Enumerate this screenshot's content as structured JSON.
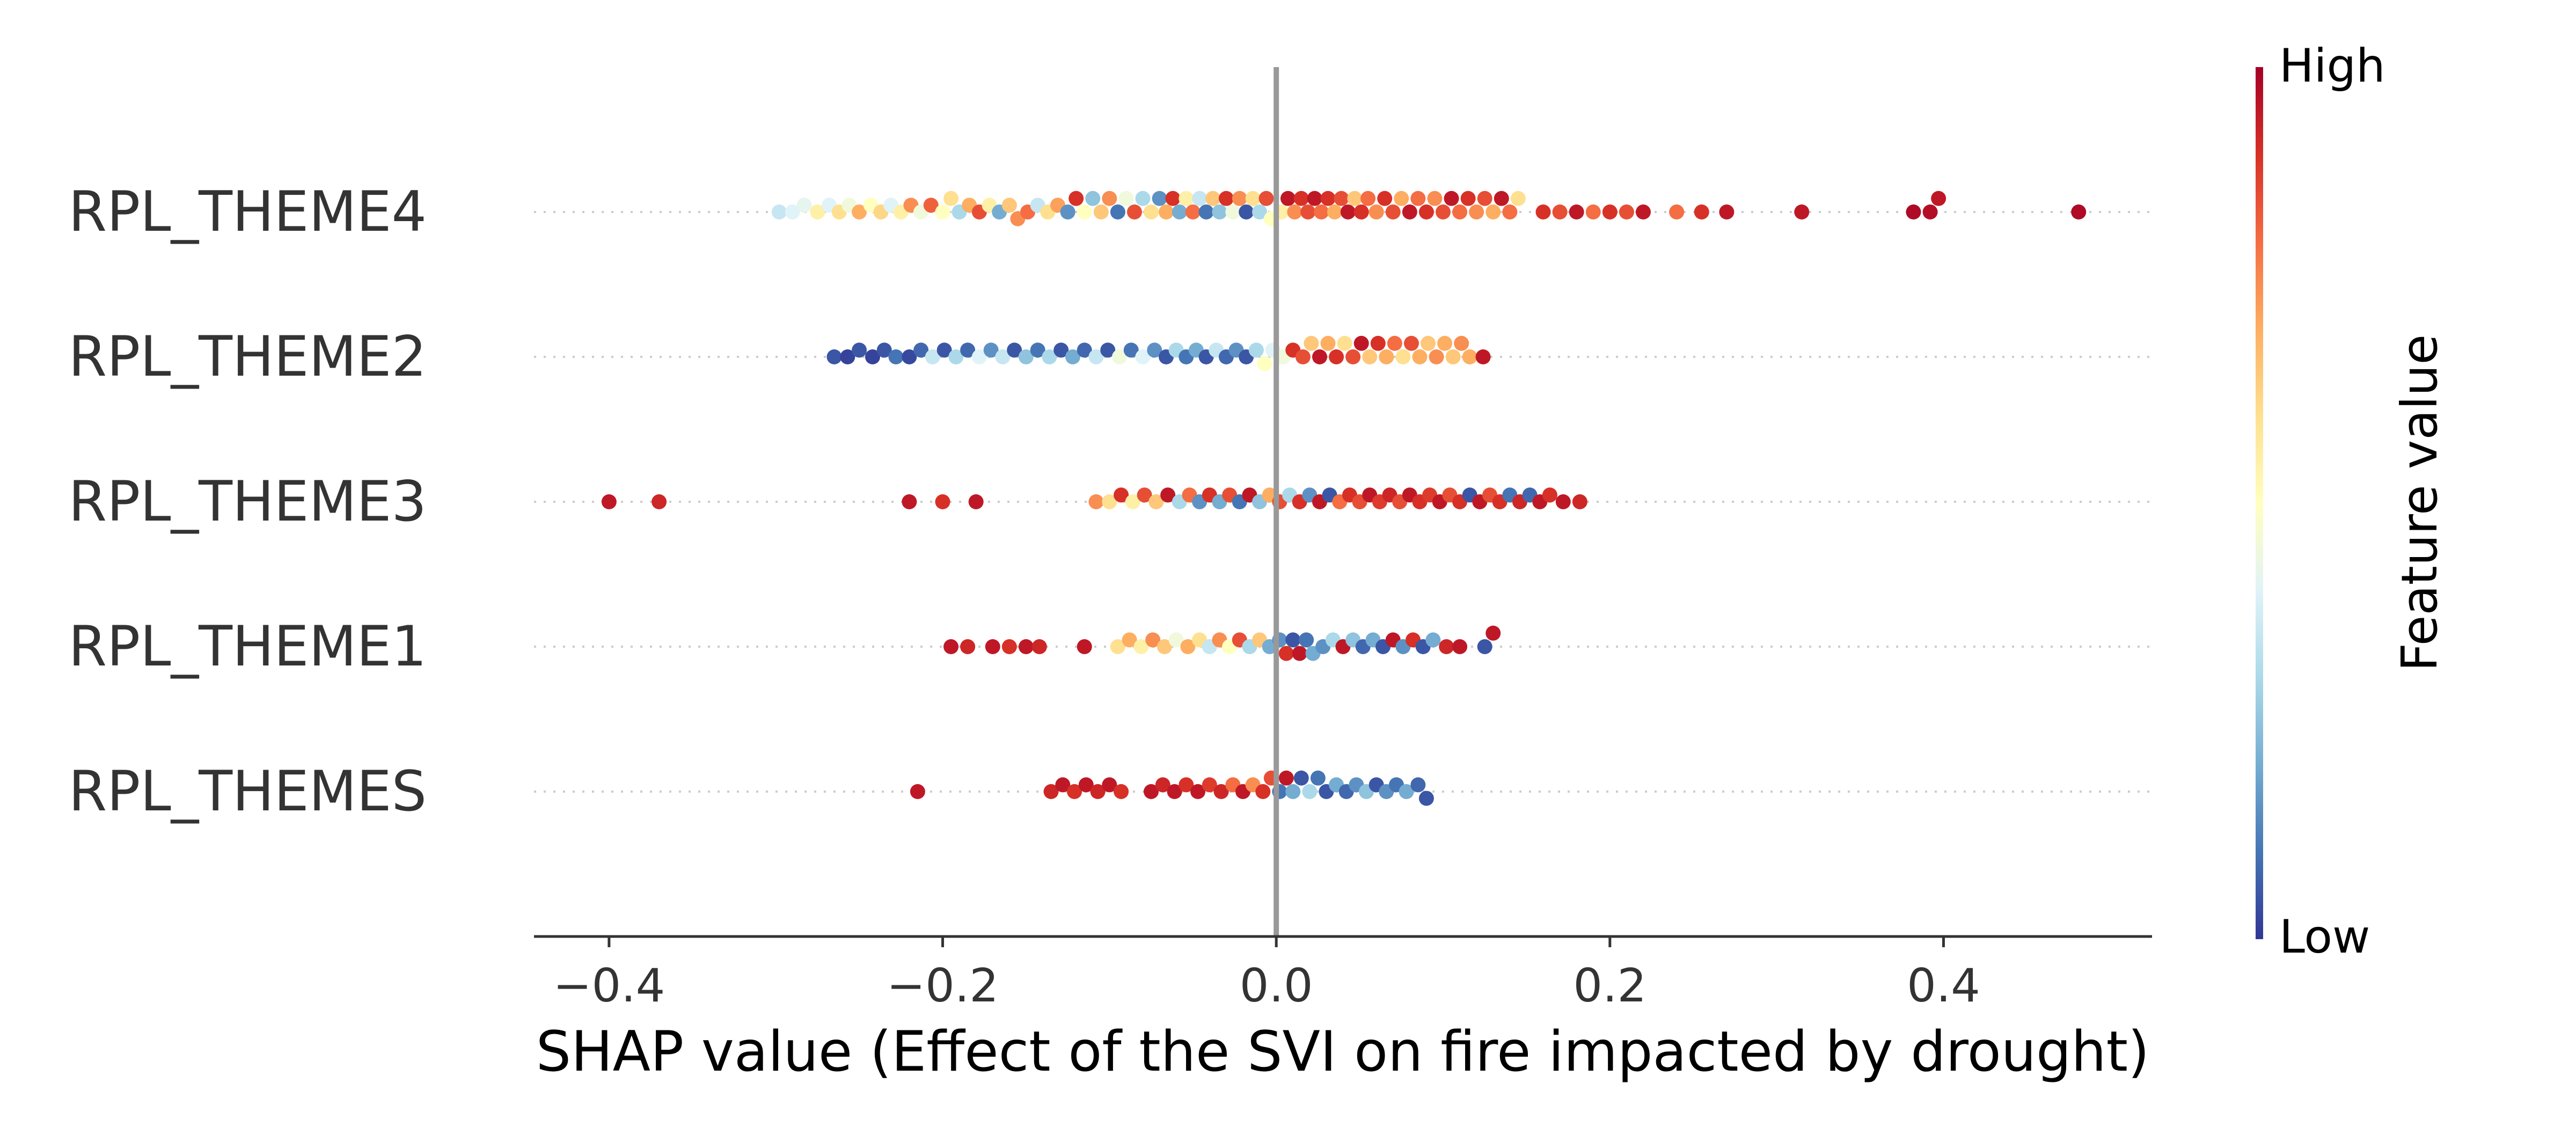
{
  "chart_data": {
    "type": "scatter",
    "subtype": "shap-beeswarm",
    "title": "",
    "xlabel": "SHAP value (Effect of the SVI on fire impacted by drought)",
    "ylabel": "",
    "xlim": [
      -0.445,
      0.525
    ],
    "xticks": [
      -0.4,
      -0.2,
      0.0,
      0.2,
      0.4
    ],
    "xtick_labels": [
      "−0.4",
      "−0.2",
      "0.0",
      "0.2",
      "0.4"
    ],
    "grid": false,
    "features": [
      "RPL_THEME4",
      "RPL_THEME2",
      "RPL_THEME3",
      "RPL_THEME1",
      "RPL_THEMES"
    ],
    "colorbar": {
      "label": "Feature value",
      "high_label": "High",
      "low_label": "Low",
      "colormap": [
        "#313695",
        "#4575b4",
        "#74add1",
        "#abd9e9",
        "#e0f3f8",
        "#ffffbf",
        "#fee090",
        "#fdae61",
        "#f46d43",
        "#d73027",
        "#a50026"
      ]
    },
    "colors": {
      "zero_line": "#999999",
      "axis": "#333333",
      "row_guide": "#cccccc"
    },
    "series": [
      {
        "feature": "RPL_THEME4",
        "points": [
          [
            -0.298,
            0.35
          ],
          [
            -0.29,
            0.4
          ],
          [
            -0.283,
            0.42
          ],
          [
            -0.275,
            0.55
          ],
          [
            -0.268,
            0.4
          ],
          [
            -0.262,
            0.6
          ],
          [
            -0.256,
            0.45
          ],
          [
            -0.25,
            0.7
          ],
          [
            -0.243,
            0.5
          ],
          [
            -0.237,
            0.62
          ],
          [
            -0.231,
            0.4
          ],
          [
            -0.225,
            0.55
          ],
          [
            -0.219,
            0.75
          ],
          [
            -0.213,
            0.45
          ],
          [
            -0.207,
            0.82
          ],
          [
            -0.2,
            0.5
          ],
          [
            -0.195,
            0.6
          ],
          [
            -0.19,
            0.3
          ],
          [
            -0.184,
            0.7
          ],
          [
            -0.178,
            0.85
          ],
          [
            -0.172,
            0.55
          ],
          [
            -0.166,
            0.2
          ],
          [
            -0.16,
            0.65
          ],
          [
            -0.155,
            0.75
          ],
          [
            -0.149,
            0.8
          ],
          [
            -0.143,
            0.35
          ],
          [
            -0.137,
            0.6
          ],
          [
            -0.131,
            0.72
          ],
          [
            -0.125,
            0.15
          ],
          [
            -0.12,
            0.9
          ],
          [
            -0.115,
            0.5
          ],
          [
            -0.11,
            0.25
          ],
          [
            -0.105,
            0.65
          ],
          [
            -0.1,
            0.75
          ],
          [
            -0.095,
            0.1
          ],
          [
            -0.09,
            0.45
          ],
          [
            -0.085,
            0.85
          ],
          [
            -0.08,
            0.3
          ],
          [
            -0.075,
            0.6
          ],
          [
            -0.07,
            0.15
          ],
          [
            -0.066,
            0.7
          ],
          [
            -0.062,
            0.9
          ],
          [
            -0.058,
            0.2
          ],
          [
            -0.054,
            0.55
          ],
          [
            -0.05,
            0.8
          ],
          [
            -0.046,
            0.35
          ],
          [
            -0.042,
            0.1
          ],
          [
            -0.038,
            0.65
          ],
          [
            -0.034,
            0.25
          ],
          [
            -0.03,
            0.9
          ],
          [
            -0.026,
            0.45
          ],
          [
            -0.022,
            0.75
          ],
          [
            -0.018,
            0.05
          ],
          [
            -0.014,
            0.6
          ],
          [
            -0.01,
            0.3
          ],
          [
            -0.006,
            0.85
          ],
          [
            -0.003,
            0.5
          ],
          [
            0.003,
            0.55
          ],
          [
            0.007,
            0.95
          ],
          [
            0.011,
            0.75
          ],
          [
            0.015,
            0.9
          ],
          [
            0.019,
            0.85
          ],
          [
            0.023,
            0.95
          ],
          [
            0.027,
            0.8
          ],
          [
            0.031,
            0.9
          ],
          [
            0.035,
            0.7
          ],
          [
            0.039,
            0.85
          ],
          [
            0.043,
            0.95
          ],
          [
            0.047,
            0.65
          ],
          [
            0.051,
            0.9
          ],
          [
            0.055,
            0.8
          ],
          [
            0.06,
            0.75
          ],
          [
            0.065,
            0.9
          ],
          [
            0.07,
            0.85
          ],
          [
            0.075,
            0.7
          ],
          [
            0.08,
            0.95
          ],
          [
            0.085,
            0.8
          ],
          [
            0.09,
            0.9
          ],
          [
            0.095,
            0.75
          ],
          [
            0.1,
            0.85
          ],
          [
            0.105,
            0.95
          ],
          [
            0.11,
            0.8
          ],
          [
            0.115,
            0.9
          ],
          [
            0.12,
            0.75
          ],
          [
            0.125,
            0.85
          ],
          [
            0.13,
            0.7
          ],
          [
            0.135,
            0.95
          ],
          [
            0.14,
            0.8
          ],
          [
            0.145,
            0.6
          ],
          [
            0.16,
            0.9
          ],
          [
            0.17,
            0.85
          ],
          [
            0.18,
            0.95
          ],
          [
            0.19,
            0.8
          ],
          [
            0.2,
            0.9
          ],
          [
            0.21,
            0.85
          ],
          [
            0.22,
            0.95
          ],
          [
            0.24,
            0.8
          ],
          [
            0.255,
            0.9
          ],
          [
            0.27,
            0.95
          ],
          [
            0.315,
            0.95
          ],
          [
            0.382,
            0.98
          ],
          [
            0.392,
            0.97
          ],
          [
            0.397,
            0.95
          ],
          [
            0.481,
            0.98
          ]
        ]
      },
      {
        "feature": "RPL_THEME2",
        "points": [
          [
            -0.265,
            0.05
          ],
          [
            -0.257,
            0.02
          ],
          [
            -0.25,
            0.05
          ],
          [
            -0.242,
            0.02
          ],
          [
            -0.235,
            0.05
          ],
          [
            -0.228,
            0.1
          ],
          [
            -0.22,
            0.03
          ],
          [
            -0.213,
            0.08
          ],
          [
            -0.206,
            0.35
          ],
          [
            -0.199,
            0.05
          ],
          [
            -0.192,
            0.3
          ],
          [
            -0.185,
            0.08
          ],
          [
            -0.178,
            0.4
          ],
          [
            -0.171,
            0.15
          ],
          [
            -0.164,
            0.35
          ],
          [
            -0.157,
            0.05
          ],
          [
            -0.15,
            0.25
          ],
          [
            -0.143,
            0.1
          ],
          [
            -0.136,
            0.3
          ],
          [
            -0.129,
            0.05
          ],
          [
            -0.122,
            0.2
          ],
          [
            -0.115,
            0.08
          ],
          [
            -0.108,
            0.35
          ],
          [
            -0.101,
            0.05
          ],
          [
            -0.094,
            0.45
          ],
          [
            -0.087,
            0.1
          ],
          [
            -0.08,
            0.4
          ],
          [
            -0.073,
            0.15
          ],
          [
            -0.066,
            0.05
          ],
          [
            -0.06,
            0.3
          ],
          [
            -0.054,
            0.1
          ],
          [
            -0.048,
            0.2
          ],
          [
            -0.042,
            0.05
          ],
          [
            -0.036,
            0.35
          ],
          [
            -0.03,
            0.08
          ],
          [
            -0.024,
            0.15
          ],
          [
            -0.018,
            0.05
          ],
          [
            -0.012,
            0.3
          ],
          [
            -0.007,
            0.5
          ],
          [
            -0.002,
            0.4
          ],
          [
            0.004,
            0.45
          ],
          [
            0.01,
            0.9
          ],
          [
            0.016,
            0.85
          ],
          [
            0.021,
            0.65
          ],
          [
            0.026,
            0.95
          ],
          [
            0.031,
            0.7
          ],
          [
            0.036,
            0.9
          ],
          [
            0.041,
            0.6
          ],
          [
            0.046,
            0.85
          ],
          [
            0.051,
            0.95
          ],
          [
            0.056,
            0.65
          ],
          [
            0.061,
            0.9
          ],
          [
            0.066,
            0.7
          ],
          [
            0.071,
            0.8
          ],
          [
            0.076,
            0.6
          ],
          [
            0.081,
            0.85
          ],
          [
            0.086,
            0.7
          ],
          [
            0.091,
            0.65
          ],
          [
            0.096,
            0.75
          ],
          [
            0.101,
            0.7
          ],
          [
            0.106,
            0.65
          ],
          [
            0.111,
            0.75
          ],
          [
            0.116,
            0.7
          ],
          [
            0.124,
            0.95
          ]
        ]
      },
      {
        "feature": "RPL_THEME3",
        "points": [
          [
            -0.4,
            0.95
          ],
          [
            -0.37,
            0.92
          ],
          [
            -0.22,
            0.95
          ],
          [
            -0.2,
            0.9
          ],
          [
            -0.18,
            0.95
          ],
          [
            -0.108,
            0.75
          ],
          [
            -0.1,
            0.6
          ],
          [
            -0.093,
            0.9
          ],
          [
            -0.086,
            0.55
          ],
          [
            -0.079,
            0.85
          ],
          [
            -0.072,
            0.65
          ],
          [
            -0.065,
            0.95
          ],
          [
            -0.058,
            0.3
          ],
          [
            -0.052,
            0.8
          ],
          [
            -0.046,
            0.15
          ],
          [
            -0.04,
            0.9
          ],
          [
            -0.034,
            0.2
          ],
          [
            -0.028,
            0.85
          ],
          [
            -0.022,
            0.1
          ],
          [
            -0.016,
            0.95
          ],
          [
            -0.01,
            0.25
          ],
          [
            -0.004,
            0.7
          ],
          [
            0.002,
            0.85
          ],
          [
            0.008,
            0.3
          ],
          [
            0.014,
            0.9
          ],
          [
            0.02,
            0.15
          ],
          [
            0.026,
            0.95
          ],
          [
            0.032,
            0.05
          ],
          [
            0.038,
            0.8
          ],
          [
            0.044,
            0.9
          ],
          [
            0.05,
            0.85
          ],
          [
            0.056,
            0.95
          ],
          [
            0.062,
            0.88
          ],
          [
            0.068,
            0.92
          ],
          [
            0.074,
            0.85
          ],
          [
            0.08,
            0.95
          ],
          [
            0.086,
            0.9
          ],
          [
            0.092,
            0.88
          ],
          [
            0.098,
            0.95
          ],
          [
            0.104,
            0.85
          ],
          [
            0.11,
            0.9
          ],
          [
            0.116,
            0.05
          ],
          [
            0.122,
            0.95
          ],
          [
            0.128,
            0.85
          ],
          [
            0.134,
            0.9
          ],
          [
            0.14,
            0.1
          ],
          [
            0.146,
            0.92
          ],
          [
            0.152,
            0.08
          ],
          [
            0.158,
            0.95
          ],
          [
            0.164,
            0.9
          ],
          [
            0.172,
            0.95
          ],
          [
            0.182,
            0.92
          ]
        ]
      },
      {
        "feature": "RPL_THEME1",
        "points": [
          [
            -0.195,
            0.95
          ],
          [
            -0.185,
            0.92
          ],
          [
            -0.17,
            0.95
          ],
          [
            -0.16,
            0.9
          ],
          [
            -0.15,
            0.95
          ],
          [
            -0.142,
            0.92
          ],
          [
            -0.115,
            0.95
          ],
          [
            -0.095,
            0.6
          ],
          [
            -0.088,
            0.7
          ],
          [
            -0.081,
            0.55
          ],
          [
            -0.074,
            0.75
          ],
          [
            -0.067,
            0.65
          ],
          [
            -0.06,
            0.45
          ],
          [
            -0.053,
            0.7
          ],
          [
            -0.046,
            0.6
          ],
          [
            -0.04,
            0.35
          ],
          [
            -0.034,
            0.75
          ],
          [
            -0.028,
            0.5
          ],
          [
            -0.022,
            0.85
          ],
          [
            -0.016,
            0.3
          ],
          [
            -0.01,
            0.65
          ],
          [
            -0.004,
            0.2
          ],
          [
            0.002,
            0.15
          ],
          [
            0.006,
            0.9
          ],
          [
            0.01,
            0.05
          ],
          [
            0.014,
            0.95
          ],
          [
            0.018,
            0.1
          ],
          [
            0.022,
            0.2
          ],
          [
            0.028,
            0.15
          ],
          [
            0.034,
            0.3
          ],
          [
            0.04,
            0.95
          ],
          [
            0.046,
            0.25
          ],
          [
            0.052,
            0.08
          ],
          [
            0.058,
            0.2
          ],
          [
            0.064,
            0.05
          ],
          [
            0.07,
            0.95
          ],
          [
            0.076,
            0.15
          ],
          [
            0.082,
            0.9
          ],
          [
            0.088,
            0.05
          ],
          [
            0.094,
            0.2
          ],
          [
            0.102,
            0.92
          ],
          [
            0.11,
            0.95
          ],
          [
            0.125,
            0.05
          ],
          [
            0.13,
            0.95
          ]
        ]
      },
      {
        "feature": "RPL_THEMES",
        "points": [
          [
            -0.215,
            0.95
          ],
          [
            -0.135,
            0.92
          ],
          [
            -0.128,
            0.95
          ],
          [
            -0.121,
            0.9
          ],
          [
            -0.114,
            0.95
          ],
          [
            -0.107,
            0.92
          ],
          [
            -0.1,
            0.95
          ],
          [
            -0.093,
            0.9
          ],
          [
            -0.075,
            0.95
          ],
          [
            -0.068,
            0.92
          ],
          [
            -0.061,
            0.95
          ],
          [
            -0.054,
            0.9
          ],
          [
            -0.047,
            0.95
          ],
          [
            -0.04,
            0.88
          ],
          [
            -0.033,
            0.92
          ],
          [
            -0.026,
            0.8
          ],
          [
            -0.02,
            0.95
          ],
          [
            -0.014,
            0.75
          ],
          [
            -0.008,
            0.9
          ],
          [
            -0.003,
            0.85
          ],
          [
            0.002,
            0.1
          ],
          [
            0.006,
            0.95
          ],
          [
            0.01,
            0.2
          ],
          [
            0.015,
            0.05
          ],
          [
            0.02,
            0.3
          ],
          [
            0.025,
            0.1
          ],
          [
            0.03,
            0.05
          ],
          [
            0.036,
            0.2
          ],
          [
            0.042,
            0.08
          ],
          [
            0.048,
            0.15
          ],
          [
            0.054,
            0.25
          ],
          [
            0.06,
            0.05
          ],
          [
            0.066,
            0.15
          ],
          [
            0.072,
            0.1
          ],
          [
            0.078,
            0.2
          ],
          [
            0.085,
            0.08
          ],
          [
            0.09,
            0.05
          ]
        ]
      }
    ]
  }
}
